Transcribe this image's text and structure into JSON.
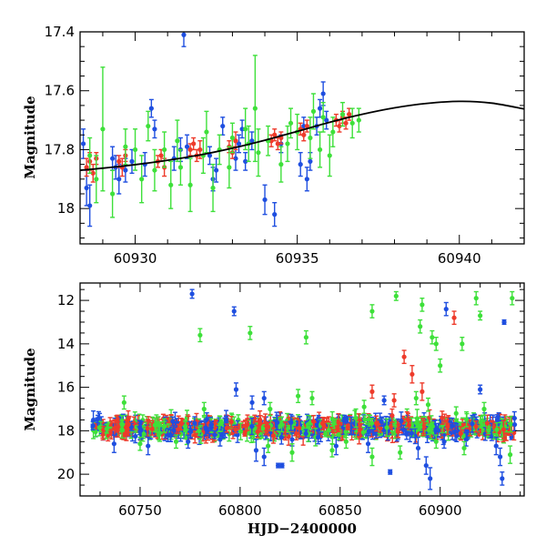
{
  "colors": {
    "blue": "#1f4fe0",
    "red": "#ee3b2b",
    "green": "#3ee03a",
    "model": "#000000"
  },
  "chart_data": [
    {
      "type": "scatter",
      "xlim": [
        60928.3,
        60942.0
      ],
      "ylim": [
        17.4,
        18.12
      ],
      "y_inverted": true,
      "xticks": [
        60930,
        60935,
        60940
      ],
      "yticks": [
        17.4,
        17.6,
        17.8,
        18
      ],
      "ytick_labels": [
        "17.4",
        "17.6",
        "17.8",
        "18"
      ],
      "xlabel": "",
      "ylabel": "Magnitude",
      "series": [
        {
          "color": "blue",
          "points": [
            [
              60928.4,
              17.78,
              0.05
            ],
            [
              60928.5,
              17.93,
              0.06
            ],
            [
              60928.6,
              17.99,
              0.07
            ],
            [
              60929.3,
              17.83,
              0.04
            ],
            [
              60929.4,
              17.86,
              0.04
            ],
            [
              60929.5,
              17.9,
              0.05
            ],
            [
              60929.7,
              17.87,
              0.04
            ],
            [
              60929.9,
              17.84,
              0.04
            ],
            [
              60930.3,
              17.85,
              0.04
            ],
            [
              60930.5,
              17.66,
              0.03
            ],
            [
              60930.6,
              17.73,
              0.03
            ],
            [
              60931.2,
              17.83,
              0.04
            ],
            [
              60931.4,
              17.8,
              0.04
            ],
            [
              60931.5,
              17.41,
              0.04
            ],
            [
              60931.6,
              17.79,
              0.04
            ],
            [
              60932.3,
              17.82,
              0.03
            ],
            [
              60932.4,
              17.9,
              0.04
            ],
            [
              60932.5,
              17.87,
              0.04
            ],
            [
              60932.7,
              17.72,
              0.03
            ],
            [
              60933.1,
              17.83,
              0.04
            ],
            [
              60933.2,
              17.78,
              0.03
            ],
            [
              60933.3,
              17.73,
              0.03
            ],
            [
              60933.4,
              17.84,
              0.03
            ],
            [
              60933.6,
              17.77,
              0.03
            ],
            [
              60934.0,
              17.97,
              0.05
            ],
            [
              60934.3,
              18.02,
              0.04
            ],
            [
              60934.5,
              17.78,
              0.03
            ],
            [
              60935.1,
              17.85,
              0.04
            ],
            [
              60935.2,
              17.72,
              0.03
            ],
            [
              60935.3,
              17.9,
              0.04
            ],
            [
              60935.4,
              17.84,
              0.03
            ],
            [
              60935.6,
              17.72,
              0.03
            ],
            [
              60935.7,
              17.66,
              0.03
            ],
            [
              60935.8,
              17.61,
              0.04
            ],
            [
              60935.9,
              17.7,
              0.03
            ]
          ]
        },
        {
          "color": "red",
          "points": [
            [
              60928.5,
              17.86,
              0.03
            ],
            [
              60928.6,
              17.84,
              0.03
            ],
            [
              60928.7,
              17.88,
              0.03
            ],
            [
              60928.8,
              17.83,
              0.02
            ],
            [
              60929.5,
              17.84,
              0.02
            ],
            [
              60929.6,
              17.86,
              0.03
            ],
            [
              60929.7,
              17.82,
              0.02
            ],
            [
              60930.7,
              17.84,
              0.02
            ],
            [
              60930.8,
              17.82,
              0.02
            ],
            [
              60930.9,
              17.86,
              0.03
            ],
            [
              60931.7,
              17.8,
              0.02
            ],
            [
              60931.8,
              17.78,
              0.02
            ],
            [
              60931.9,
              17.82,
              0.02
            ],
            [
              60932.0,
              17.8,
              0.03
            ],
            [
              60932.9,
              17.79,
              0.02
            ],
            [
              60933.0,
              17.81,
              0.02
            ],
            [
              60933.1,
              17.77,
              0.03
            ],
            [
              60934.2,
              17.77,
              0.02
            ],
            [
              60934.3,
              17.75,
              0.02
            ],
            [
              60934.4,
              17.78,
              0.02
            ],
            [
              60934.5,
              17.76,
              0.02
            ],
            [
              60935.1,
              17.73,
              0.02
            ],
            [
              60935.2,
              17.75,
              0.02
            ],
            [
              60935.3,
              17.72,
              0.02
            ],
            [
              60936.2,
              17.7,
              0.02
            ],
            [
              60936.3,
              17.72,
              0.02
            ],
            [
              60936.4,
              17.69,
              0.02
            ],
            [
              60936.5,
              17.71,
              0.02
            ],
            [
              60936.6,
              17.68,
              0.02
            ]
          ]
        },
        {
          "color": "green",
          "points": [
            [
              60928.6,
              17.82,
              0.06
            ],
            [
              60928.8,
              17.9,
              0.08
            ],
            [
              60929.0,
              17.73,
              0.21
            ],
            [
              60929.3,
              17.95,
              0.08
            ],
            [
              60929.7,
              17.79,
              0.06
            ],
            [
              60930.0,
              17.8,
              0.07
            ],
            [
              60930.2,
              17.9,
              0.08
            ],
            [
              60930.4,
              17.72,
              0.05
            ],
            [
              60930.6,
              17.87,
              0.07
            ],
            [
              60930.9,
              17.8,
              0.06
            ],
            [
              60931.1,
              17.92,
              0.08
            ],
            [
              60931.3,
              17.77,
              0.07
            ],
            [
              60931.4,
              17.86,
              0.06
            ],
            [
              60931.7,
              17.92,
              0.09
            ],
            [
              60932.1,
              17.82,
              0.06
            ],
            [
              60932.2,
              17.74,
              0.07
            ],
            [
              60932.4,
              17.93,
              0.08
            ],
            [
              60932.6,
              17.8,
              0.05
            ],
            [
              60932.9,
              17.86,
              0.07
            ],
            [
              60933.0,
              17.76,
              0.05
            ],
            [
              60933.4,
              17.73,
              0.07
            ],
            [
              60933.5,
              17.78,
              0.06
            ],
            [
              60933.7,
              17.66,
              0.18
            ],
            [
              60933.8,
              17.81,
              0.08
            ],
            [
              60934.1,
              17.77,
              0.05
            ],
            [
              60934.5,
              17.85,
              0.06
            ],
            [
              60934.7,
              17.78,
              0.06
            ],
            [
              60934.8,
              17.71,
              0.05
            ],
            [
              60935.0,
              17.74,
              0.06
            ],
            [
              60935.4,
              17.76,
              0.07
            ],
            [
              60935.5,
              17.67,
              0.06
            ],
            [
              60935.7,
              17.8,
              0.06
            ],
            [
              60935.8,
              17.69,
              0.05
            ],
            [
              60936.0,
              17.82,
              0.07
            ],
            [
              60936.1,
              17.74,
              0.05
            ],
            [
              60936.4,
              17.68,
              0.04
            ],
            [
              60936.7,
              17.71,
              0.05
            ],
            [
              60936.9,
              17.7,
              0.04
            ]
          ]
        }
      ],
      "model_curve": [
        [
          60928.3,
          17.87
        ],
        [
          60929.0,
          17.863
        ],
        [
          60930.0,
          17.851
        ],
        [
          60931.0,
          17.836
        ],
        [
          60932.0,
          17.818
        ],
        [
          60933.0,
          17.795
        ],
        [
          60934.0,
          17.768
        ],
        [
          60935.0,
          17.738
        ],
        [
          60936.0,
          17.707
        ],
        [
          60937.0,
          17.68
        ],
        [
          60938.0,
          17.658
        ],
        [
          60939.0,
          17.643
        ],
        [
          60940.0,
          17.636
        ],
        [
          60941.0,
          17.642
        ],
        [
          60942.0,
          17.662
        ]
      ]
    },
    {
      "type": "scatter",
      "xlim": [
        60720,
        60942
      ],
      "ylim": [
        11.2,
        21.0
      ],
      "y_inverted": true,
      "xticks": [
        60750,
        60800,
        60850,
        60900
      ],
      "yticks": [
        12,
        14,
        16,
        18,
        20
      ],
      "ytick_labels": [
        "12",
        "14",
        "16",
        "18",
        "20"
      ],
      "xlabel": "HJD−2400000",
      "ylabel": "Magnitude",
      "series": [
        {
          "color": "blue",
          "points": [
            [
              60776,
              11.7,
              0.2
            ],
            [
              60797,
              12.5,
              0.2
            ],
            [
              60903,
              12.4,
              0.3
            ],
            [
              60932,
              13.0,
              0.1
            ],
            [
              60798,
              16.1,
              0.3
            ],
            [
              60806,
              16.7,
              0.3
            ],
            [
              60812,
              16.5,
              0.3
            ],
            [
              60872,
              16.6,
              0.2
            ],
            [
              60920,
              16.1,
              0.2
            ],
            [
              60737,
              18.6,
              0.4
            ],
            [
              60754,
              18.7,
              0.4
            ],
            [
              60764,
              18.2,
              0.3
            ],
            [
              60774,
              18.5,
              0.3
            ],
            [
              60790,
              18.4,
              0.3
            ],
            [
              60808,
              18.9,
              0.5
            ],
            [
              60812,
              19.2,
              0.4
            ],
            [
              60819,
              19.6,
              0.1
            ],
            [
              60821,
              19.6,
              0.1
            ],
            [
              60826,
              18.4,
              0.3
            ],
            [
              60839,
              18.3,
              0.3
            ],
            [
              60848,
              18.7,
              0.4
            ],
            [
              60864,
              18.6,
              0.4
            ],
            [
              60875,
              19.9,
              0.1
            ],
            [
              60889,
              18.8,
              0.5
            ],
            [
              60893,
              19.6,
              0.4
            ],
            [
              60895,
              20.2,
              0.5
            ],
            [
              60902,
              18.5,
              0.3
            ],
            [
              60913,
              18.4,
              0.3
            ],
            [
              60928,
              18.7,
              0.4
            ],
            [
              60930,
              19.2,
              0.4
            ],
            [
              60931,
              20.2,
              0.3
            ]
          ]
        },
        {
          "color": "red",
          "points": [
            [
              60907,
              12.8,
              0.3
            ],
            [
              60882,
              14.6,
              0.3
            ],
            [
              60886,
              15.4,
              0.4
            ],
            [
              60891,
              16.2,
              0.4
            ],
            [
              60866,
              16.2,
              0.3
            ],
            [
              60877,
              16.6,
              0.3
            ],
            [
              60876,
              17.3,
              0.3
            ],
            [
              60901,
              17.4,
              0.3
            ],
            [
              60884,
              17.5,
              0.3
            ]
          ]
        },
        {
          "color": "green",
          "points": [
            [
              60878,
              11.8,
              0.2
            ],
            [
              60918,
              11.9,
              0.3
            ],
            [
              60936,
              11.9,
              0.3
            ],
            [
              60866,
              12.5,
              0.3
            ],
            [
              60891,
              12.2,
              0.3
            ],
            [
              60920,
              12.7,
              0.2
            ],
            [
              60890,
              13.2,
              0.3
            ],
            [
              60896,
              13.7,
              0.3
            ],
            [
              60805,
              13.5,
              0.3
            ],
            [
              60780,
              13.6,
              0.3
            ],
            [
              60833,
              13.7,
              0.3
            ],
            [
              60898,
              14.0,
              0.3
            ],
            [
              60911,
              14.0,
              0.3
            ],
            [
              60900,
              15.0,
              0.3
            ],
            [
              60742,
              16.7,
              0.3
            ],
            [
              60782,
              17.0,
              0.3
            ],
            [
              60815,
              17.0,
              0.3
            ],
            [
              60829,
              16.4,
              0.3
            ],
            [
              60836,
              16.5,
              0.3
            ],
            [
              60862,
              16.9,
              0.3
            ],
            [
              60888,
              16.5,
              0.3
            ],
            [
              60894,
              16.8,
              0.3
            ],
            [
              60908,
              17.2,
              0.3
            ],
            [
              60922,
              17.0,
              0.3
            ],
            [
              60750,
              18.6,
              0.3
            ],
            [
              60768,
              18.5,
              0.3
            ],
            [
              60814,
              18.7,
              0.3
            ],
            [
              60826,
              19.0,
              0.4
            ],
            [
              60846,
              18.9,
              0.3
            ],
            [
              60853,
              18.5,
              0.3
            ],
            [
              60866,
              19.2,
              0.4
            ],
            [
              60880,
              19.0,
              0.3
            ],
            [
              60898,
              18.5,
              0.3
            ],
            [
              60912,
              18.8,
              0.3
            ],
            [
              60935,
              19.1,
              0.4
            ]
          ]
        }
      ],
      "dense_band": {
        "x_range": [
          60726,
          60938
        ],
        "center": 17.85,
        "spread": 0.35
      }
    }
  ]
}
